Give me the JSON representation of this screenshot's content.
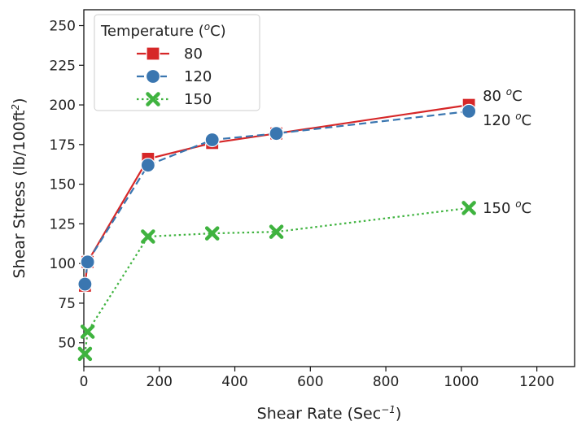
{
  "chart_data": {
    "type": "line",
    "title": "",
    "xlabel_main": "Shear Rate (Sec",
    "xlabel_sup": "−1",
    "xlabel_end": ")",
    "ylabel_main": "Shear Stress (lb/100ft",
    "ylabel_sup": "2",
    "ylabel_end": ")",
    "xlim": [
      0,
      1300
    ],
    "ylim": [
      35,
      260
    ],
    "xticks": [
      0,
      200,
      400,
      600,
      800,
      1000,
      1200
    ],
    "yticks": [
      50,
      75,
      100,
      125,
      150,
      175,
      200,
      225,
      250
    ],
    "grid": false,
    "legend": {
      "title_main": "Temperature (",
      "title_sup": "o",
      "title_end": "C)",
      "placement": "top-left"
    },
    "series": [
      {
        "name": "80",
        "color": "#d62728",
        "marker": "square",
        "linestyle": "solid",
        "x": [
          3,
          10,
          170,
          340,
          510,
          1020
        ],
        "y": [
          86,
          101,
          166,
          176,
          182,
          200
        ],
        "annotation": "80 °C",
        "annotation_main": "80 ",
        "annotation_sup": "o",
        "annotation_end": "C"
      },
      {
        "name": "120",
        "color": "#3a76b0",
        "marker": "circle",
        "linestyle": "dashed",
        "x": [
          3,
          10,
          170,
          340,
          510,
          1020
        ],
        "y": [
          87,
          101,
          162,
          178,
          182,
          196
        ],
        "annotation": "120 °C",
        "annotation_main": "120 ",
        "annotation_sup": "o",
        "annotation_end": "C"
      },
      {
        "name": "150",
        "color": "#3fb33f",
        "marker": "x",
        "linestyle": "dotted",
        "x": [
          3,
          10,
          170,
          340,
          510,
          1020
        ],
        "y": [
          43,
          57,
          117,
          119,
          120,
          135
        ],
        "annotation": "150 °C",
        "annotation_main": "150 ",
        "annotation_sup": "o",
        "annotation_end": "C"
      }
    ]
  }
}
